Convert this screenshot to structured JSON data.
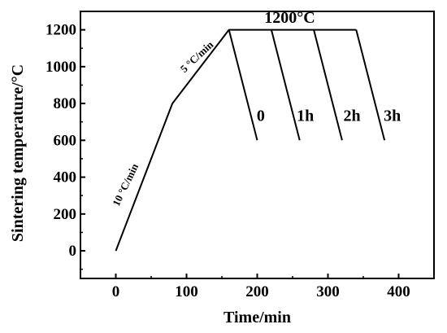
{
  "chart_data": {
    "type": "line",
    "xlabel": "Time/min",
    "ylabel": "Sintering temperature/°C",
    "xlim": [
      -50,
      450
    ],
    "ylim": [
      -150,
      1300
    ],
    "xticks": [
      0,
      100,
      200,
      300,
      400
    ],
    "yticks": [
      0,
      200,
      400,
      600,
      800,
      1000,
      1200
    ],
    "grid": false,
    "series": [
      {
        "x": [
          0,
          80,
          160,
          340
        ],
        "y": [
          0,
          800,
          1200,
          1200
        ]
      },
      {
        "x": [
          160,
          200
        ],
        "y": [
          1200,
          600
        ]
      },
      {
        "x": [
          220,
          260
        ],
        "y": [
          1200,
          600
        ]
      },
      {
        "x": [
          280,
          320
        ],
        "y": [
          1200,
          600
        ]
      },
      {
        "x": [
          340,
          380
        ],
        "y": [
          1200,
          600
        ]
      }
    ],
    "annotations": [
      {
        "text": "10 °C/min",
        "x": 18,
        "y": 350,
        "rotate": -64,
        "size": 13
      },
      {
        "text": "5 °C/min",
        "x": 118,
        "y": 1040,
        "rotate": -43,
        "size": 13
      },
      {
        "text": "1200°C",
        "x": 246,
        "y": 1238,
        "rotate": 0,
        "size": 20
      },
      {
        "text": "0",
        "x": 205,
        "y": 705,
        "rotate": 0,
        "size": 20
      },
      {
        "text": "1h",
        "x": 268,
        "y": 705,
        "rotate": 0,
        "size": 20
      },
      {
        "text": "2h",
        "x": 334,
        "y": 705,
        "rotate": 0,
        "size": 20
      },
      {
        "text": "3h",
        "x": 391,
        "y": 705,
        "rotate": 0,
        "size": 20
      }
    ]
  }
}
